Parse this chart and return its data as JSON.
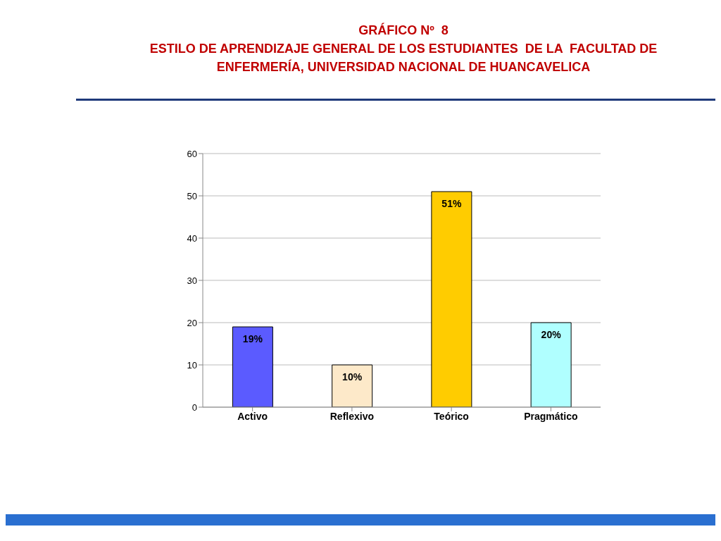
{
  "chart_data": {
    "type": "bar",
    "title": "GRÁFICO Nº  8",
    "subtitle": "ESTILO DE APRENDIZAJE GENERAL DE LOS ESTUDIANTES  DE LA  FACULTAD DE ENFERMERÍA, UNIVERSIDAD NACIONAL DE HUANCAVELICA",
    "categories": [
      "Activo",
      "Reflexivo",
      "Teórico",
      "Pragmático"
    ],
    "values": [
      19,
      10,
      51,
      20
    ],
    "value_labels": [
      "19%",
      "10%",
      "51%",
      "20%"
    ],
    "colors": [
      "#5b5bff",
      "#fde9c9",
      "#ffcc00",
      "#b0ffff"
    ],
    "ylim": [
      0,
      60
    ],
    "yticks": [
      0,
      10,
      20,
      30,
      40,
      50,
      60
    ],
    "grid": "y"
  }
}
